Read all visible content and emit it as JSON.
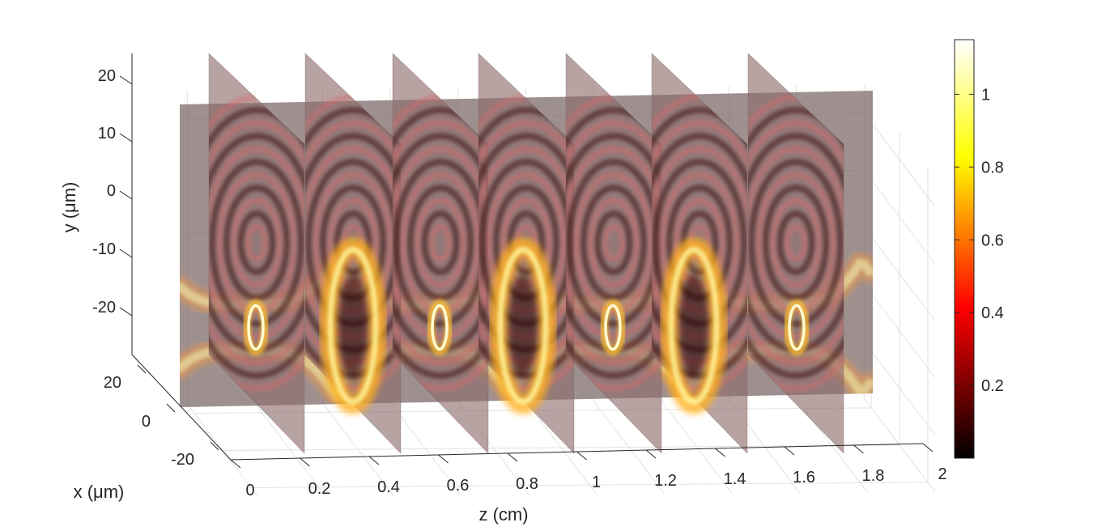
{
  "chart_data": {
    "type": "heatmap",
    "title": "",
    "xlabel": "z (cm)",
    "ylabel": "y (μm)",
    "zlabel": "x (μm)",
    "z_axis": {
      "ticks": [
        0,
        0.2,
        0.4,
        0.6,
        0.8,
        1,
        1.2,
        1.4,
        1.6,
        1.8,
        2
      ],
      "tick_labels": [
        "0",
        "0.2",
        "0.4",
        "0.6",
        "0.8",
        "1",
        "1.2",
        "1.4",
        "1.6",
        "1.8",
        "2"
      ],
      "lim": [
        0,
        2
      ]
    },
    "y_axis": {
      "ticks": [
        20,
        10,
        0,
        -10,
        -20
      ],
      "tick_labels": [
        "20",
        "10",
        "0",
        "-10",
        "-20"
      ],
      "lim": [
        -30,
        25
      ]
    },
    "x_axis": {
      "ticks": [
        20,
        0,
        -20
      ],
      "tick_labels": [
        "20",
        "0",
        "-20"
      ],
      "lim": [
        -25,
        25
      ]
    },
    "slice_z_positions": [
      0,
      0.3,
      0.55,
      0.8,
      1.05,
      1.3,
      1.6
    ],
    "longitudinal_slice": "x = 0",
    "beam_focus_z": [
      0.02,
      0.54,
      1.05,
      1.57
    ],
    "beam_wide_z": [
      0.28,
      0.8,
      1.31
    ],
    "beam_center_y": -9,
    "grid": true,
    "colormap": "hot",
    "colorbar": {
      "ticks": [
        0.2,
        0.4,
        0.6,
        0.8,
        1
      ],
      "tick_labels": [
        "0.2",
        "0.4",
        "0.6",
        "0.8",
        "1"
      ],
      "lim": [
        0,
        1.15
      ]
    }
  }
}
